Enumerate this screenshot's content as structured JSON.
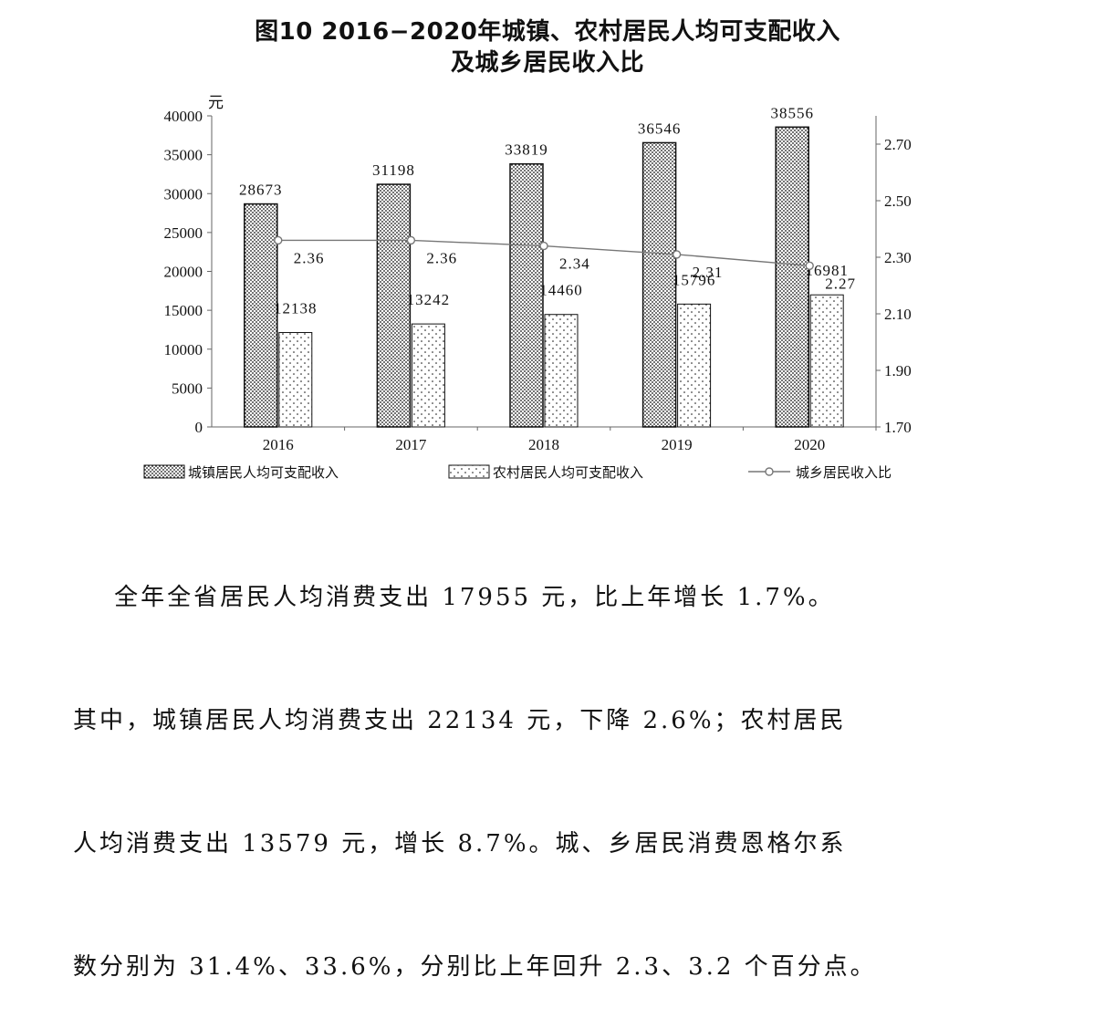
{
  "title": {
    "line1": "图10 2016−2020年城镇、农村居民人均可支配收入",
    "line2": "及城乡居民收入比"
  },
  "chart_data": {
    "type": "bar",
    "categories": [
      "2016",
      "2017",
      "2018",
      "2019",
      "2020"
    ],
    "series": [
      {
        "name": "城镇居民人均可支配收入",
        "kind": "bar",
        "axis": "left",
        "pattern": "dense-dots",
        "values": [
          28673,
          31198,
          33819,
          36546,
          38556
        ]
      },
      {
        "name": "农村居民人均可支配收入",
        "kind": "bar",
        "axis": "left",
        "pattern": "sparse-dots",
        "values": [
          12138,
          13242,
          14460,
          15796,
          16981
        ]
      },
      {
        "name": "城乡居民收入比",
        "kind": "line",
        "axis": "right",
        "values": [
          2.36,
          2.36,
          2.34,
          2.31,
          2.27
        ]
      }
    ],
    "ylabel": "元",
    "ylim": [
      0,
      40000
    ],
    "y_ticks": [
      "0",
      "5000",
      "10000",
      "15000",
      "20000",
      "25000",
      "30000",
      "35000",
      "40000"
    ],
    "y2lim": [
      1.7,
      2.8
    ],
    "y2_ticks": [
      "1.70",
      "1.90",
      "2.10",
      "2.30",
      "2.50",
      "2.70"
    ],
    "legend_position": "bottom",
    "grid": false,
    "colors": {
      "ink": "#111111",
      "line": "#777777"
    }
  },
  "paragraph": {
    "line1": "    全年全省居民人均消费支出 17955 元，比上年增长 1.7%。",
    "line2": "其中，城镇居民人均消费支出 22134 元，下降 2.6%；农村居民",
    "line3": "人均消费支出 13579 元，增长 8.7%。城、乡居民消费恩格尔系",
    "line4": "数分别为 31.4%、33.6%，分别比上年回升 2.3、3.2 个百分点。"
  }
}
